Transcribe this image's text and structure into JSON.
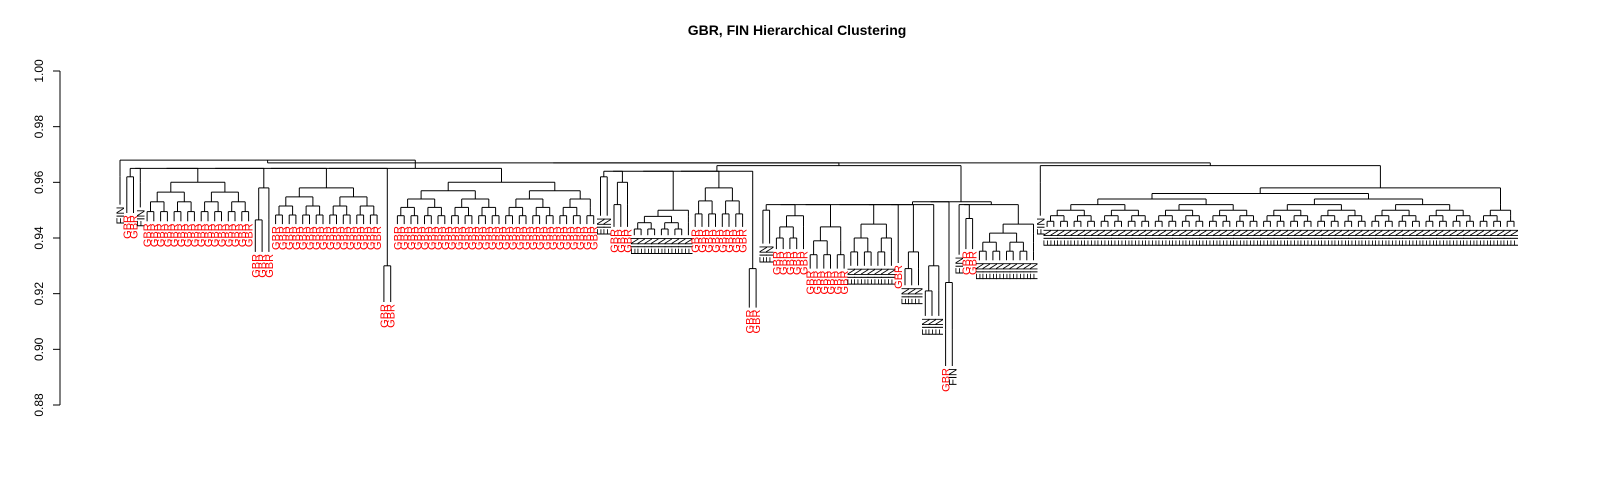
{
  "chart_data": {
    "type": "dendrogram",
    "title": "GBR, FIN Hierarchical Clustering",
    "xlabel": "",
    "ylabel": "",
    "ylim": [
      0.88,
      1.0
    ],
    "yticks": [
      "0.88",
      "0.90",
      "0.92",
      "0.94",
      "0.96",
      "0.98",
      "1.00"
    ],
    "grid": false,
    "legend": "none",
    "colors": {
      "GBR": "#ff0000",
      "FIN": "#000000"
    },
    "groups": [
      {
        "label": "FIN",
        "count": 1,
        "leaf_height": 0.952,
        "merge_height": 0.962
      },
      {
        "label": "GBR",
        "count": 2,
        "leaf_height": 0.949,
        "merge_height": 0.962
      },
      {
        "label": "FIN",
        "count": 1,
        "leaf_height": 0.951,
        "merge_height": 0.96
      },
      {
        "label": "GBR",
        "count": 16,
        "leaf_height": 0.946,
        "merge_height": 0.96
      },
      {
        "label": "GBR",
        "count": 3,
        "leaf_height": 0.935,
        "merge_height": 0.958
      },
      {
        "label": "GBR",
        "count": 16,
        "leaf_height": 0.945,
        "merge_height": 0.958
      },
      {
        "label": "GBR",
        "count": 2,
        "leaf_height": 0.917,
        "merge_height": 0.93
      },
      {
        "label": "GBR",
        "count": 30,
        "leaf_height": 0.945,
        "merge_height": 0.96
      },
      {
        "label": "FIN",
        "count": 2,
        "leaf_height": 0.948,
        "merge_height": 0.962
      },
      {
        "label": "GBR",
        "count": 3,
        "leaf_height": 0.944,
        "merge_height": 0.96
      },
      {
        "label": "FIN",
        "count": 9,
        "leaf_height": 0.941,
        "merge_height": 0.95
      },
      {
        "label": "GBR",
        "count": 8,
        "leaf_height": 0.944,
        "merge_height": 0.958
      },
      {
        "label": "GBR",
        "count": 2,
        "leaf_height": 0.915,
        "merge_height": 0.929
      },
      {
        "label": "FIN",
        "count": 2,
        "leaf_height": 0.938,
        "merge_height": 0.95
      },
      {
        "label": "GBR",
        "count": 5,
        "leaf_height": 0.936,
        "merge_height": 0.948
      },
      {
        "label": "GBR",
        "count": 6,
        "leaf_height": 0.929,
        "merge_height": 0.944
      },
      {
        "label": "FIN",
        "count": 7,
        "leaf_height": 0.93,
        "merge_height": 0.945
      },
      {
        "label": "GBR",
        "count": 1,
        "leaf_height": 0.931,
        "merge_height": 0.94
      },
      {
        "label": "FIN",
        "count": 3,
        "leaf_height": 0.923,
        "merge_height": 0.935
      },
      {
        "label": "FIN",
        "count": 3,
        "leaf_height": 0.912,
        "merge_height": 0.93
      },
      {
        "label": "GBR",
        "count": 1,
        "leaf_height": 0.894,
        "merge_height": 0.907
      },
      {
        "label": "FIN",
        "count": 1,
        "leaf_height": 0.894,
        "merge_height": 0.907
      },
      {
        "label": "FIN",
        "count": 1,
        "leaf_height": 0.934,
        "merge_height": 0.94
      },
      {
        "label": "GBR",
        "count": 2,
        "leaf_height": 0.936,
        "merge_height": 0.947
      },
      {
        "label": "FIN",
        "count": 9,
        "leaf_height": 0.932,
        "merge_height": 0.945
      },
      {
        "label": "FIN",
        "count": 1,
        "leaf_height": 0.948,
        "merge_height": 0.96
      },
      {
        "label": "FIN",
        "count": 70,
        "leaf_height": 0.944,
        "merge_height": 0.958
      }
    ]
  }
}
